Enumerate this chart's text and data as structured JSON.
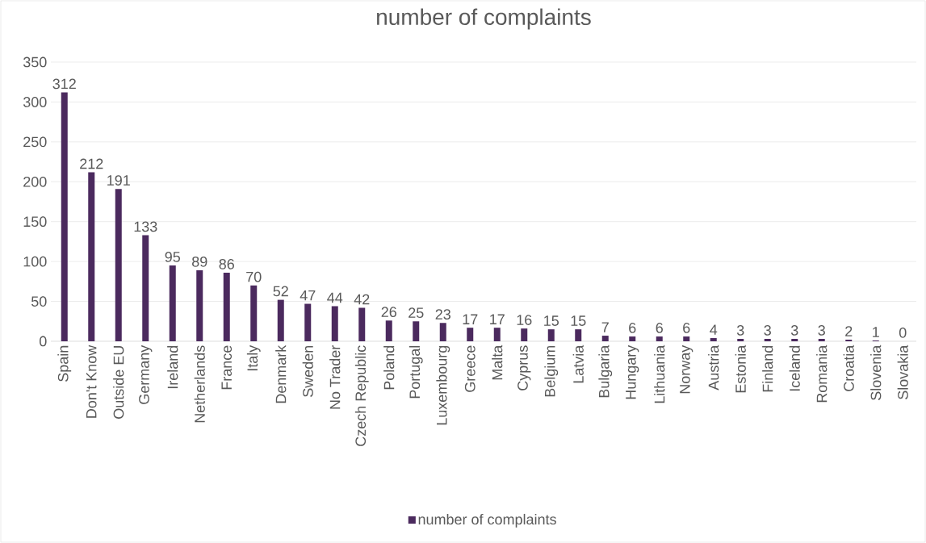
{
  "chart_data": {
    "type": "bar",
    "title": "number of complaints",
    "categories": [
      "Spain",
      "Don't Know",
      "Outside EU",
      "Germany",
      "Ireland",
      "Netherlands",
      "France",
      "Italy",
      "Denmark",
      "Sweden",
      "No Trader",
      "Czech Republic",
      "Poland",
      "Portugal",
      "Luxembourg",
      "Greece",
      "Malta",
      "Cyprus",
      "Belgium",
      "Latvia",
      "Bulgaria",
      "Hungary",
      "Lithuania",
      "Norway",
      "Austria",
      "Estonia",
      "Finland",
      "Iceland",
      "Romania",
      "Croatia",
      "Slovenia",
      "Slovakia"
    ],
    "series": [
      {
        "name": "number of complaints",
        "color": "#4b2a5e",
        "values": [
          312,
          212,
          191,
          133,
          95,
          89,
          86,
          70,
          52,
          47,
          44,
          42,
          26,
          25,
          23,
          17,
          17,
          16,
          15,
          15,
          7,
          6,
          6,
          6,
          4,
          3,
          3,
          3,
          3,
          2,
          1,
          0
        ]
      }
    ],
    "ylim": [
      0,
      350
    ],
    "yticks": [
      0,
      50,
      100,
      150,
      200,
      250,
      300,
      350
    ],
    "grid": "y",
    "legend": "bottom",
    "data_labels": true
  }
}
